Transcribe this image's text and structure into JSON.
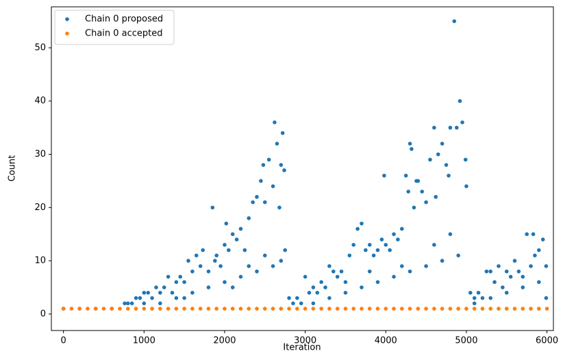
{
  "chart_data": {
    "type": "scatter",
    "x_label": "Iteration",
    "y_label": "Count",
    "xlim": [
      -150,
      6080
    ],
    "ylim": [
      -3.1,
      57.7
    ],
    "xticks": [
      0,
      1000,
      2000,
      3000,
      4000,
      5000,
      6000
    ],
    "yticks": [
      0,
      10,
      20,
      30,
      40,
      50
    ],
    "legend": "upper left",
    "series": [
      {
        "name": "Chain 0 proposed",
        "color": "#1f77b4",
        "x": [
          0,
          200,
          400,
          600,
          760,
          800,
          850,
          900,
          950,
          1000,
          1050,
          1100,
          1150,
          1200,
          1250,
          1300,
          1350,
          1400,
          1450,
          1500,
          1550,
          1600,
          1650,
          1700,
          1730,
          1800,
          1850,
          1880,
          1900,
          1950,
          2000,
          2020,
          2050,
          2100,
          2150,
          2200,
          2250,
          2300,
          2350,
          2400,
          2450,
          2480,
          2500,
          2550,
          2600,
          2620,
          2650,
          2680,
          2700,
          2720,
          2740,
          2750,
          2800,
          2850,
          2900,
          2950,
          3000,
          3050,
          3100,
          3150,
          3200,
          3250,
          3300,
          3350,
          3400,
          3450,
          3500,
          3550,
          3600,
          3650,
          3700,
          3750,
          3800,
          3850,
          3900,
          3950,
          3980,
          4000,
          4050,
          4100,
          4150,
          4200,
          4250,
          4280,
          4300,
          4320,
          4350,
          4380,
          4400,
          4450,
          4500,
          4550,
          4600,
          4620,
          4650,
          4700,
          4750,
          4780,
          4800,
          4850,
          4880,
          4920,
          4950,
          4990,
          5000,
          5050,
          5100,
          5150,
          5200,
          5250,
          5300,
          5350,
          5400,
          5450,
          5500,
          5550,
          5600,
          5650,
          5700,
          5750,
          5800,
          5830,
          5850,
          5900,
          5950,
          5990,
          1000,
          1200,
          1400,
          1600,
          1800,
          2000,
          2200,
          2400,
          2600,
          2700,
          3100,
          3300,
          3500,
          3700,
          3900,
          4100,
          4300,
          4500,
          4700,
          4900,
          5100,
          5300,
          5500,
          5700,
          5900,
          5990,
          1500,
          2100,
          2300,
          2500,
          3800,
          4200,
          4600,
          4800
        ],
        "values": [
          1,
          1,
          1,
          1,
          2,
          2,
          2,
          3,
          3,
          4,
          4,
          3,
          5,
          4,
          5,
          7,
          4,
          6,
          7,
          6,
          10,
          8,
          11,
          9,
          12,
          8,
          20,
          10,
          11,
          9,
          13,
          17,
          12,
          15,
          14,
          16,
          12,
          18,
          21,
          22,
          25,
          28,
          21,
          29,
          24,
          36,
          32,
          20,
          28,
          34,
          27,
          12,
          3,
          2,
          3,
          2,
          7,
          4,
          5,
          4,
          6,
          5,
          9,
          8,
          7,
          8,
          6,
          11,
          13,
          16,
          17,
          12,
          13,
          11,
          12,
          14,
          26,
          13,
          12,
          15,
          14,
          16,
          26,
          23,
          32,
          31,
          20,
          25,
          25,
          23,
          21,
          29,
          35,
          22,
          30,
          32,
          28,
          26,
          35,
          55,
          35,
          40,
          36,
          29,
          24,
          4,
          3,
          4,
          3,
          8,
          8,
          6,
          9,
          5,
          8,
          7,
          10,
          8,
          7,
          15,
          9,
          15,
          11,
          12,
          14,
          9,
          2,
          2,
          3,
          4,
          5,
          6,
          7,
          8,
          9,
          10,
          2,
          3,
          4,
          5,
          6,
          7,
          8,
          9,
          10,
          11,
          2,
          3,
          4,
          5,
          6,
          3,
          3,
          5,
          9,
          11,
          8,
          9,
          13,
          15
        ]
      },
      {
        "name": "Chain 0 accepted",
        "color": "#ff7f0e",
        "x": [
          0,
          100,
          200,
          300,
          400,
          500,
          600,
          700,
          800,
          900,
          1000,
          1100,
          1200,
          1300,
          1400,
          1500,
          1600,
          1700,
          1800,
          1900,
          2000,
          2100,
          2200,
          2300,
          2400,
          2500,
          2600,
          2700,
          2800,
          2900,
          3000,
          3100,
          3200,
          3300,
          3400,
          3500,
          3600,
          3700,
          3800,
          3900,
          4000,
          4100,
          4200,
          4300,
          4400,
          4500,
          4600,
          4700,
          4800,
          4900,
          5000,
          5100,
          5200,
          5300,
          5400,
          5500,
          5600,
          5700,
          5800,
          5900,
          6000
        ],
        "values": [
          1,
          1,
          1,
          1,
          1,
          1,
          1,
          1,
          1,
          1,
          1,
          1,
          1,
          1,
          1,
          1,
          1,
          1,
          1,
          1,
          1,
          1,
          1,
          1,
          1,
          1,
          1,
          1,
          1,
          1,
          1,
          1,
          1,
          1,
          1,
          1,
          1,
          1,
          1,
          1,
          1,
          1,
          1,
          1,
          1,
          1,
          1,
          1,
          1,
          1,
          1,
          1,
          1,
          1,
          1,
          1,
          1,
          1,
          1,
          1,
          1
        ]
      }
    ]
  }
}
